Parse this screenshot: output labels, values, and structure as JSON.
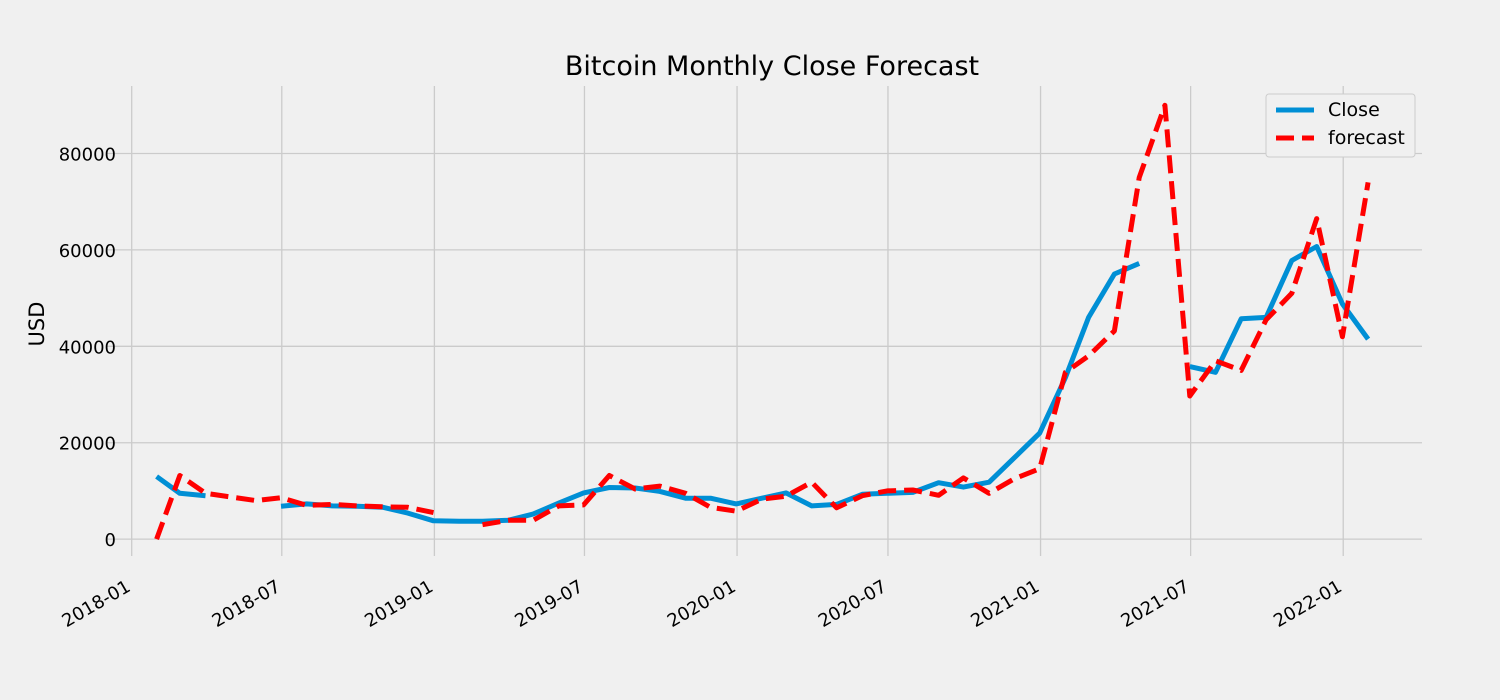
{
  "chart_data": {
    "type": "line",
    "title": "Bitcoin Monthly Close Forecast",
    "xlabel": "",
    "ylabel": "USD",
    "xlim": [
      "2017-12-01",
      "2022-04-06"
    ],
    "ylim": [
      -3500,
      94000
    ],
    "x_ticks": [
      "2018-01",
      "2018-07",
      "2019-01",
      "2019-07",
      "2020-01",
      "2020-07",
      "2021-01",
      "2021-07",
      "2022-01"
    ],
    "y_ticks": [
      0,
      20000,
      40000,
      60000,
      80000
    ],
    "grid": true,
    "legend_position": "top-right",
    "colors": {
      "close": "#008fd5",
      "forecast": "#ff0000",
      "grid": "#cbcbcb",
      "background": "#f0f0f0"
    },
    "series": [
      {
        "name": "Close",
        "style": "solid",
        "color": "#008fd5",
        "points": [
          [
            "2018-01-31",
            13000
          ],
          [
            "2018-02-28",
            9500
          ],
          [
            "2018-03-31",
            9000
          ],
          null,
          [
            "2018-06-30",
            6800
          ],
          [
            "2018-07-31",
            7300
          ],
          [
            "2018-08-31",
            6900
          ],
          [
            "2018-09-30",
            6800
          ],
          [
            "2018-10-31",
            6600
          ],
          [
            "2018-11-30",
            5400
          ],
          [
            "2018-12-31",
            3800
          ],
          [
            "2019-01-31",
            3700
          ],
          [
            "2019-02-28",
            3700
          ],
          [
            "2019-03-31",
            3900
          ],
          [
            "2019-04-30",
            5200
          ],
          [
            "2019-05-31",
            7500
          ],
          [
            "2019-06-30",
            9600
          ],
          [
            "2019-07-31",
            10700
          ],
          [
            "2019-08-31",
            10600
          ],
          [
            "2019-09-30",
            9900
          ],
          [
            "2019-10-31",
            8500
          ],
          [
            "2019-11-30",
            8500
          ],
          [
            "2019-12-31",
            7300
          ],
          [
            "2020-01-31",
            8500
          ],
          [
            "2020-02-29",
            9600
          ],
          [
            "2020-03-31",
            6900
          ],
          [
            "2020-04-30",
            7200
          ],
          [
            "2020-05-31",
            9300
          ],
          [
            "2020-06-30",
            9500
          ],
          [
            "2020-07-31",
            9700
          ],
          [
            "2020-08-31",
            11700
          ],
          [
            "2020-09-30",
            10800
          ],
          [
            "2020-10-31",
            11800
          ],
          [
            "2020-11-30",
            16800
          ],
          [
            "2020-12-31",
            22000
          ],
          [
            "2021-01-31",
            33500
          ],
          [
            "2021-02-28",
            46000
          ],
          [
            "2021-03-31",
            55000
          ],
          [
            "2021-04-30",
            57200
          ],
          null,
          [
            "2021-06-30",
            35800
          ],
          [
            "2021-07-31",
            34600
          ],
          [
            "2021-08-31",
            45700
          ],
          [
            "2021-09-30",
            46000
          ],
          [
            "2021-10-31",
            57800
          ],
          [
            "2021-11-30",
            60700
          ],
          [
            "2021-12-31",
            48800
          ],
          [
            "2022-01-31",
            41500
          ]
        ]
      },
      {
        "name": "forecast",
        "style": "dashed",
        "color": "#ff0000",
        "points": [
          [
            "2018-01-31",
            0
          ],
          [
            "2018-02-28",
            13200
          ],
          [
            "2018-03-31",
            9500
          ],
          [
            "2018-05-31",
            8000
          ],
          [
            "2018-06-30",
            8600
          ],
          [
            "2018-07-31",
            7000
          ],
          [
            "2018-08-31",
            7200
          ],
          [
            "2018-09-30",
            6900
          ],
          [
            "2018-10-31",
            6700
          ],
          [
            "2018-11-30",
            6600
          ],
          [
            "2018-12-31",
            5500
          ],
          null,
          [
            "2019-02-28",
            3000
          ],
          [
            "2019-03-31",
            3900
          ],
          [
            "2019-04-30",
            3900
          ],
          [
            "2019-05-31",
            6900
          ],
          [
            "2019-06-30",
            7100
          ],
          [
            "2019-07-31",
            13200
          ],
          [
            "2019-08-31",
            10400
          ],
          [
            "2019-09-30",
            11000
          ],
          [
            "2019-10-31",
            9500
          ],
          [
            "2019-11-30",
            6600
          ],
          [
            "2019-12-31",
            5800
          ],
          [
            "2020-01-31",
            8300
          ],
          [
            "2020-02-29",
            8900
          ],
          [
            "2020-03-31",
            11800
          ],
          [
            "2020-04-30",
            6500
          ],
          [
            "2020-05-31",
            9000
          ],
          [
            "2020-06-30",
            10000
          ],
          [
            "2020-07-31",
            10200
          ],
          [
            "2020-08-31",
            9100
          ],
          [
            "2020-09-30",
            12700
          ],
          [
            "2020-10-31",
            9500
          ],
          [
            "2020-11-30",
            12500
          ],
          [
            "2020-12-31",
            14600
          ],
          [
            "2021-01-31",
            34600
          ],
          [
            "2021-02-28",
            38000
          ],
          [
            "2021-03-31",
            43200
          ],
          [
            "2021-04-30",
            75000
          ],
          [
            "2021-05-31",
            90000
          ],
          [
            "2021-06-30",
            29700
          ],
          [
            "2021-07-31",
            37000
          ],
          [
            "2021-08-31",
            35000
          ],
          [
            "2021-09-30",
            45500
          ],
          [
            "2021-10-31",
            51000
          ],
          [
            "2021-11-30",
            66500
          ],
          [
            "2021-12-31",
            42000
          ],
          [
            "2022-01-31",
            74000
          ]
        ]
      }
    ]
  }
}
